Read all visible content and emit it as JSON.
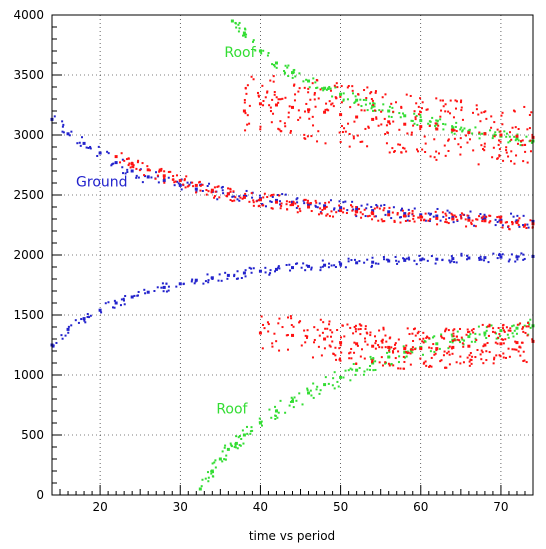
{
  "chart_data": {
    "type": "scatter",
    "title": "",
    "xlabel": "time vs period",
    "ylabel": "",
    "xlim": [
      14,
      74
    ],
    "ylim": [
      0,
      4000
    ],
    "xticks": [
      20,
      30,
      40,
      50,
      60,
      70
    ],
    "yticks": [
      0,
      500,
      1000,
      1500,
      2000,
      2500,
      3000,
      3500,
      4000
    ],
    "grid": true,
    "annotations": [
      {
        "text": "Roof",
        "x": 35.5,
        "y": 3650,
        "color": "#33dd33"
      },
      {
        "text": "Ground",
        "x": 17,
        "y": 2570,
        "color": "#2222cc"
      },
      {
        "text": "Roof",
        "x": 34.5,
        "y": 680,
        "color": "#33dd33"
      }
    ],
    "series": [
      {
        "color": "#2222cc",
        "points": [
          [
            14,
            3130
          ],
          [
            16,
            3010
          ],
          [
            18,
            2930
          ],
          [
            20,
            2850
          ],
          [
            22,
            2770
          ],
          [
            24,
            2700
          ],
          [
            26,
            2650
          ],
          [
            28,
            2620
          ],
          [
            30,
            2580
          ],
          [
            32,
            2550
          ],
          [
            34,
            2530
          ],
          [
            36,
            2510
          ],
          [
            38,
            2490
          ],
          [
            40,
            2470
          ],
          [
            42,
            2455
          ],
          [
            44,
            2440
          ],
          [
            46,
            2425
          ],
          [
            48,
            2410
          ],
          [
            50,
            2395
          ],
          [
            52,
            2380
          ],
          [
            54,
            2370
          ],
          [
            56,
            2360
          ],
          [
            58,
            2345
          ],
          [
            60,
            2335
          ],
          [
            62,
            2325
          ],
          [
            64,
            2315
          ],
          [
            66,
            2305
          ],
          [
            68,
            2300
          ],
          [
            70,
            2290
          ],
          [
            72,
            2285
          ],
          [
            74,
            2280
          ]
        ]
      },
      {
        "color": "#2222cc",
        "points": [
          [
            14,
            1250
          ],
          [
            16,
            1380
          ],
          [
            18,
            1470
          ],
          [
            20,
            1540
          ],
          [
            22,
            1600
          ],
          [
            24,
            1650
          ],
          [
            26,
            1690
          ],
          [
            28,
            1730
          ],
          [
            30,
            1760
          ],
          [
            32,
            1790
          ],
          [
            34,
            1810
          ],
          [
            36,
            1830
          ],
          [
            38,
            1850
          ],
          [
            40,
            1865
          ],
          [
            42,
            1880
          ],
          [
            44,
            1895
          ],
          [
            46,
            1905
          ],
          [
            48,
            1915
          ],
          [
            50,
            1925
          ],
          [
            52,
            1935
          ],
          [
            54,
            1940
          ],
          [
            56,
            1950
          ],
          [
            58,
            1955
          ],
          [
            60,
            1960
          ],
          [
            62,
            1965
          ],
          [
            64,
            1970
          ],
          [
            66,
            1975
          ],
          [
            68,
            1978
          ],
          [
            70,
            1982
          ],
          [
            72,
            1985
          ],
          [
            74,
            1988
          ]
        ]
      },
      {
        "color": "#33dd33",
        "points": [
          [
            36.5,
            3950
          ],
          [
            38,
            3850
          ],
          [
            40,
            3700
          ],
          [
            42,
            3600
          ],
          [
            44,
            3520
          ],
          [
            46,
            3450
          ],
          [
            48,
            3390
          ],
          [
            50,
            3340
          ],
          [
            52,
            3290
          ],
          [
            54,
            3240
          ],
          [
            56,
            3200
          ],
          [
            58,
            3160
          ],
          [
            60,
            3120
          ],
          [
            62,
            3090
          ],
          [
            64,
            3060
          ],
          [
            66,
            3030
          ],
          [
            68,
            3010
          ],
          [
            70,
            2990
          ],
          [
            72,
            2970
          ],
          [
            74,
            2950
          ]
        ]
      },
      {
        "color": "#33dd33",
        "points": [
          [
            32.5,
            50
          ],
          [
            34,
            200
          ],
          [
            35,
            300
          ],
          [
            36,
            380
          ],
          [
            37,
            430
          ],
          [
            38,
            500
          ],
          [
            40,
            600
          ],
          [
            42,
            700
          ],
          [
            44,
            780
          ],
          [
            46,
            850
          ],
          [
            48,
            920
          ],
          [
            50,
            980
          ],
          [
            52,
            1040
          ],
          [
            54,
            1100
          ],
          [
            56,
            1150
          ],
          [
            58,
            1190
          ],
          [
            60,
            1230
          ],
          [
            62,
            1260
          ],
          [
            64,
            1290
          ],
          [
            66,
            1320
          ],
          [
            68,
            1350
          ],
          [
            70,
            1370
          ],
          [
            72,
            1390
          ],
          [
            74,
            1410
          ]
        ]
      },
      {
        "color": "#ff1111",
        "points": [
          [
            22,
            2820
          ],
          [
            24,
            2760
          ],
          [
            26,
            2710
          ],
          [
            28,
            2660
          ],
          [
            30,
            2620
          ],
          [
            32,
            2580
          ],
          [
            34,
            2540
          ],
          [
            36,
            2510
          ],
          [
            38,
            2480
          ],
          [
            40,
            2460
          ],
          [
            42,
            2440
          ],
          [
            44,
            2420
          ],
          [
            46,
            2400
          ],
          [
            48,
            2390
          ],
          [
            50,
            2370
          ],
          [
            52,
            2360
          ],
          [
            54,
            2345
          ],
          [
            56,
            2335
          ],
          [
            58,
            2325
          ],
          [
            60,
            2315
          ],
          [
            62,
            2305
          ],
          [
            64,
            2300
          ],
          [
            66,
            2290
          ],
          [
            68,
            2285
          ],
          [
            70,
            2275
          ],
          [
            72,
            2270
          ],
          [
            74,
            2260
          ]
        ]
      },
      {
        "color": "#ff1111",
        "points": [
          [
            38,
            3200
          ],
          [
            40,
            3260
          ],
          [
            42,
            3250
          ],
          [
            44,
            3230
          ],
          [
            46,
            3210
          ],
          [
            48,
            3190
          ],
          [
            50,
            3170
          ],
          [
            52,
            3150
          ],
          [
            54,
            3130
          ],
          [
            56,
            3110
          ],
          [
            58,
            3090
          ],
          [
            60,
            3070
          ],
          [
            62,
            3050
          ],
          [
            64,
            3040
          ],
          [
            66,
            3020
          ],
          [
            68,
            3010
          ],
          [
            70,
            3000
          ],
          [
            72,
            2990
          ],
          [
            74,
            2980
          ]
        ]
      },
      {
        "color": "#ff1111",
        "points": [
          [
            40,
            1350
          ],
          [
            44,
            1330
          ],
          [
            48,
            1300
          ],
          [
            50,
            1270
          ],
          [
            52,
            1260
          ],
          [
            54,
            1240
          ],
          [
            56,
            1230
          ],
          [
            58,
            1220
          ],
          [
            60,
            1220
          ],
          [
            62,
            1220
          ],
          [
            64,
            1230
          ],
          [
            66,
            1240
          ],
          [
            68,
            1250
          ],
          [
            70,
            1260
          ],
          [
            72,
            1270
          ],
          [
            74,
            1280
          ]
        ]
      }
    ]
  }
}
